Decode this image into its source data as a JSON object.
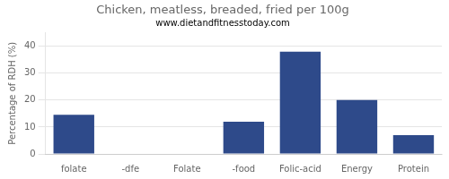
{
  "chart_data": {
    "type": "bar",
    "title": "Chicken, meatless, breaded, fried per 100g",
    "subtitle": "www.dietandfitnesstoday.com",
    "categories": [
      "folate",
      "-dfe",
      "Folate",
      "-food",
      "Folic-acid",
      "Energy",
      "Protein"
    ],
    "values": [
      14.5,
      0.0,
      0.0,
      12.0,
      38.0,
      20.0,
      7.0
    ],
    "color": "#2e4a8a",
    "ylabel": "Percentage of RDH (%)",
    "ylim": [
      0,
      45
    ],
    "yticks": [
      0,
      10,
      20,
      30,
      40
    ],
    "grid": true
  }
}
